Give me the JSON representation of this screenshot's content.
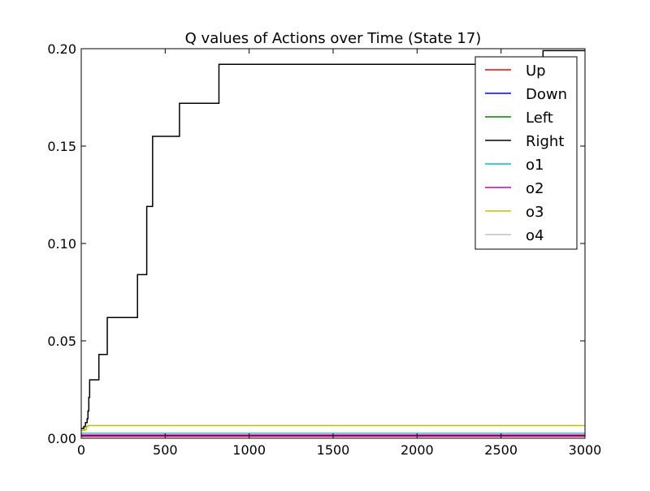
{
  "chart_data": {
    "type": "line",
    "title": "Q values of Actions over Time (State 17)",
    "xlabel": "",
    "ylabel": "",
    "xlim": [
      0,
      3000
    ],
    "ylim": [
      0,
      0.2
    ],
    "x_ticks": [
      0,
      500,
      1000,
      1500,
      2000,
      2500,
      3000
    ],
    "x_tick_labels": [
      "0",
      "500",
      "1000",
      "1500",
      "2000",
      "2500",
      "3000"
    ],
    "y_ticks": [
      0,
      0.05,
      0.1,
      0.15,
      0.2
    ],
    "y_tick_labels": [
      "0.00",
      "0.05",
      "0.10",
      "0.15",
      "0.20"
    ],
    "grid": false,
    "legend_position": "top-right",
    "series": [
      {
        "name": "Up",
        "color": "#ff0000",
        "step": true,
        "points": [
          [
            0,
            0.001
          ],
          [
            3000,
            0.001
          ]
        ]
      },
      {
        "name": "Down",
        "color": "#0000ff",
        "step": true,
        "points": [
          [
            0,
            0.0015
          ],
          [
            3000,
            0.0015
          ]
        ]
      },
      {
        "name": "Left",
        "color": "#008000",
        "step": true,
        "points": [
          [
            0,
            0.002
          ],
          [
            3000,
            0.002
          ]
        ]
      },
      {
        "name": "Right",
        "color": "#000000",
        "step": true,
        "points": [
          [
            0,
            0.005
          ],
          [
            15,
            0.006
          ],
          [
            25,
            0.008
          ],
          [
            35,
            0.01
          ],
          [
            40,
            0.014
          ],
          [
            45,
            0.021
          ],
          [
            50,
            0.03
          ],
          [
            105,
            0.043
          ],
          [
            155,
            0.062
          ],
          [
            335,
            0.084
          ],
          [
            390,
            0.119
          ],
          [
            425,
            0.155
          ],
          [
            585,
            0.172
          ],
          [
            820,
            0.192
          ],
          [
            2750,
            0.199
          ],
          [
            3000,
            0.199
          ]
        ]
      },
      {
        "name": "o1",
        "color": "#00bfbf",
        "step": true,
        "points": [
          [
            0,
            0.0025
          ],
          [
            3000,
            0.0025
          ]
        ]
      },
      {
        "name": "o2",
        "color": "#bf00bf",
        "step": true,
        "points": [
          [
            0,
            0.0018
          ],
          [
            3000,
            0.0018
          ]
        ]
      },
      {
        "name": "o3",
        "color": "#bfbf00",
        "step": true,
        "points": [
          [
            0,
            0.004
          ],
          [
            20,
            0.0045
          ],
          [
            30,
            0.006
          ],
          [
            40,
            0.0065
          ],
          [
            3000,
            0.0065
          ]
        ]
      },
      {
        "name": "o4",
        "color": "#c0c0c0",
        "step": true,
        "points": [
          [
            0,
            0.0022
          ],
          [
            3000,
            0.0022
          ]
        ]
      }
    ]
  }
}
